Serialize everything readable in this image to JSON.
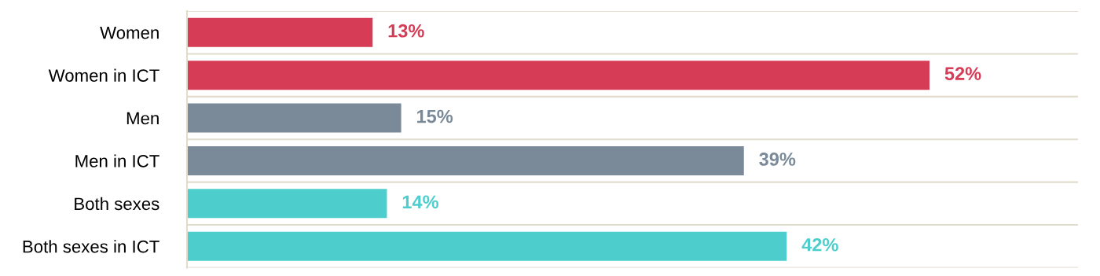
{
  "chart_data": {
    "type": "bar",
    "orientation": "horizontal",
    "categories": [
      "Women",
      "Women in ICT",
      "Men",
      "Men in ICT",
      "Both sexes",
      "Both sexes in ICT"
    ],
    "values": [
      13,
      52,
      15,
      39,
      14,
      42
    ],
    "colors": [
      "#d63c55",
      "#d63c55",
      "#7a8a99",
      "#7a8a99",
      "#4ecdcd",
      "#4ecdcd"
    ],
    "value_labels": [
      "13%",
      "52%",
      "15%",
      "39%",
      "14%",
      "42%"
    ],
    "grid": "y"
  }
}
